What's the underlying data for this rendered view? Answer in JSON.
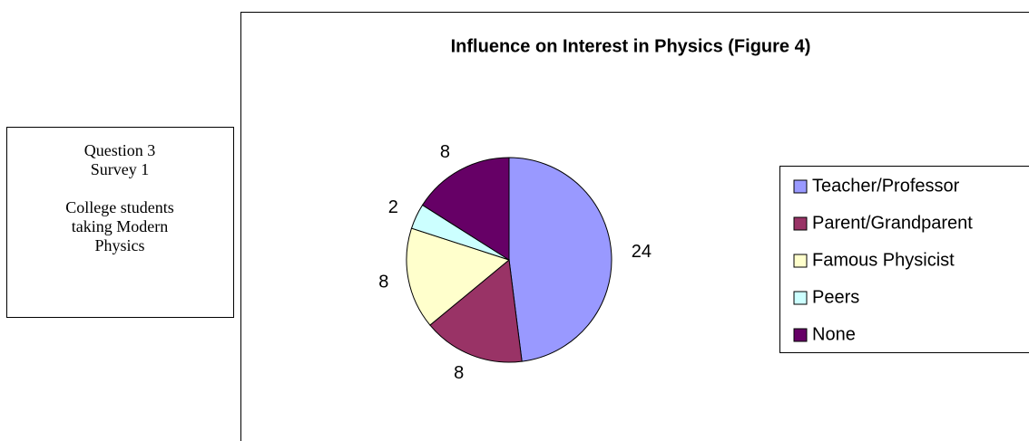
{
  "note": [
    "Question 3",
    "Survey 1",
    "College students",
    "taking Modern",
    "Physics"
  ],
  "chart_data": {
    "type": "pie",
    "title": "Influence on Interest in Physics (Figure 4)",
    "categories": [
      "Teacher/Professor",
      "Parent/Grandparent",
      "Famous Physicist",
      "Peers",
      "None"
    ],
    "values": [
      24,
      8,
      8,
      2,
      8
    ],
    "colors": [
      "#9999ff",
      "#993366",
      "#ffffcc",
      "#ccffff",
      "#660066"
    ],
    "legend": "right"
  }
}
